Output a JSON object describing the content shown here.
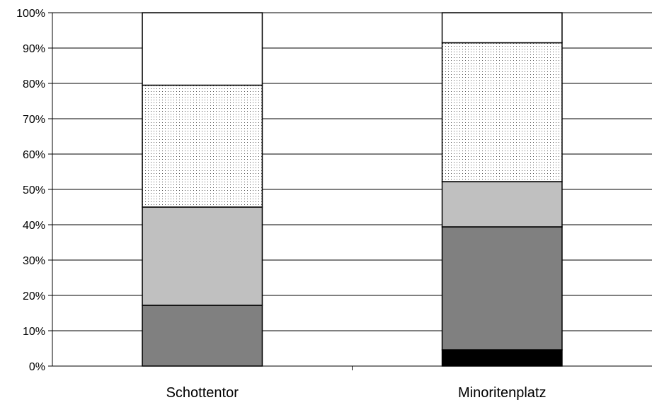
{
  "chart_data": {
    "type": "bar",
    "stacked": true,
    "percent": true,
    "categories": [
      "Schottentor",
      "Minoritenplatz"
    ],
    "series": [
      {
        "values": [
          0.0,
          4.6
        ],
        "color": "#000000",
        "pattern": "solid"
      },
      {
        "values": [
          17.2,
          34.8
        ],
        "color": "#808080",
        "pattern": "solid"
      },
      {
        "values": [
          27.8,
          12.8
        ],
        "color": "#c0c0c0",
        "pattern": "solid"
      },
      {
        "values": [
          34.5,
          39.3
        ],
        "color": "#ffffff",
        "pattern": "dots"
      },
      {
        "values": [
          20.5,
          8.5
        ],
        "color": "#ffffff",
        "pattern": "solid"
      }
    ],
    "y_ticks": [
      "0%",
      "10%",
      "20%",
      "30%",
      "40%",
      "50%",
      "60%",
      "70%",
      "80%",
      "90%",
      "100%"
    ],
    "ylim": [
      0,
      100
    ],
    "grid": true,
    "legend": "none",
    "title": "",
    "xlabel": "",
    "ylabel": ""
  }
}
